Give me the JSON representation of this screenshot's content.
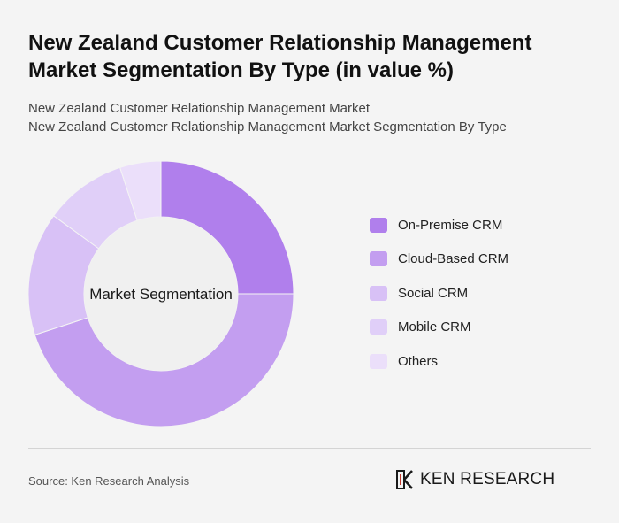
{
  "title_line1": "New Zealand Customer Relationship Management",
  "title_line2": "Market Segmentation By Type (in value %)",
  "subtitle1": "New Zealand Customer Relationship Management Market",
  "subtitle2": "New Zealand Customer Relationship Management Market Segmentation By Type",
  "chart_data": {
    "type": "pie",
    "center_label": "Market Segmentation",
    "categories": [
      "On-Premise CRM",
      "Cloud-Based CRM",
      "Social CRM",
      "Mobile CRM",
      "Others"
    ],
    "values": [
      25,
      45,
      15,
      10,
      5
    ],
    "colors": [
      "#b07fec",
      "#c39ef0",
      "#d8c1f6",
      "#e0cff8",
      "#ebdffa"
    ],
    "legend_position": "right"
  },
  "source": "Source: Ken Research Analysis",
  "logo": {
    "text": "KEN RESEARCH",
    "icon": "ken-research-logo-icon"
  }
}
